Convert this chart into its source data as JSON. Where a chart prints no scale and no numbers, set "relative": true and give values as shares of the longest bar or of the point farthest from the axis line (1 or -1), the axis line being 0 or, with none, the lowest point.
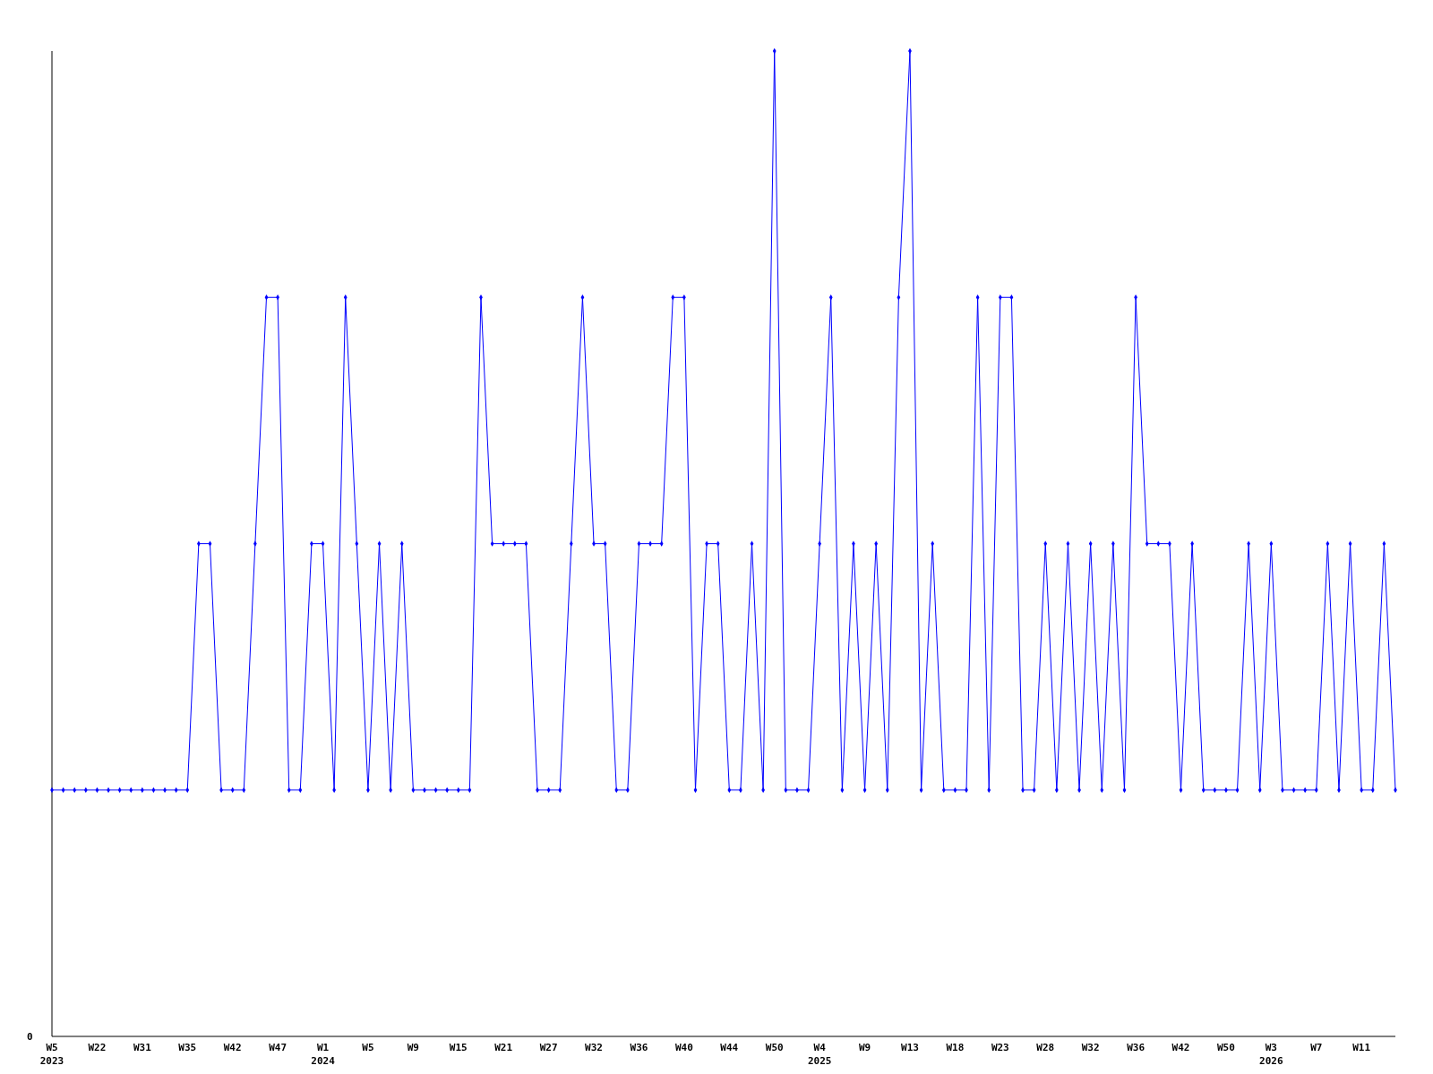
{
  "chart_data": {
    "type": "line",
    "relative": true,
    "color": "#0000ff",
    "marker": "diamond",
    "annotations": [
      "0"
    ],
    "categories": [
      "W5\n2023",
      null,
      null,
      null,
      "W22",
      null,
      null,
      null,
      "W31",
      null,
      null,
      null,
      "W35",
      null,
      null,
      null,
      "W42",
      null,
      null,
      null,
      "W47",
      null,
      null,
      null,
      "W1\n2024",
      null,
      null,
      null,
      "W5",
      null,
      null,
      null,
      "W9",
      null,
      null,
      null,
      "W15",
      null,
      null,
      null,
      "W21",
      null,
      null,
      null,
      "W27",
      null,
      null,
      null,
      "W32",
      null,
      null,
      null,
      "W36",
      null,
      null,
      null,
      "W40",
      null,
      null,
      null,
      "W44",
      null,
      null,
      null,
      "W50",
      null,
      null,
      null,
      "W4\n2025",
      null,
      null,
      null,
      "W9",
      null,
      null,
      null,
      "W13",
      null,
      null,
      null,
      "W18",
      null,
      null,
      null,
      "W23",
      null,
      null,
      null,
      "W28",
      null,
      null,
      null,
      "W32",
      null,
      null,
      null,
      "W36",
      null,
      null,
      null,
      "W42",
      null,
      null,
      null,
      "W50",
      null,
      null,
      null,
      "W3\n2026",
      null,
      null,
      null,
      "W7",
      null,
      null,
      null,
      "W11",
      null,
      null,
      null
    ],
    "values": [
      0.25,
      0.25,
      0.25,
      0.25,
      0.25,
      0.25,
      0.25,
      0.25,
      0.25,
      0.25,
      0.25,
      0.25,
      0.25,
      0.5,
      0.5,
      0.25,
      0.25,
      0.25,
      0.5,
      0.75,
      0.75,
      0.25,
      0.25,
      0.5,
      0.5,
      0.25,
      0.75,
      0.5,
      0.25,
      0.5,
      0.25,
      0.5,
      0.25,
      0.25,
      0.25,
      0.25,
      0.25,
      0.25,
      0.75,
      0.5,
      0.5,
      0.5,
      0.5,
      0.25,
      0.25,
      0.25,
      0.5,
      0.75,
      0.5,
      0.5,
      0.25,
      0.25,
      0.5,
      0.5,
      0.5,
      0.75,
      0.75,
      0.25,
      0.5,
      0.5,
      0.25,
      0.25,
      0.5,
      0.25,
      1,
      0.25,
      0.25,
      0.25,
      0.5,
      0.75,
      0.25,
      0.5,
      0.25,
      0.5,
      0.25,
      0.75,
      1,
      0.25,
      0.5,
      0.25,
      0.25,
      0.25,
      0.75,
      0.25,
      0.75,
      0.75,
      0.25,
      0.25,
      0.5,
      0.25,
      0.5,
      0.25,
      0.5,
      0.25,
      0.5,
      0.25,
      0.75,
      0.5,
      0.5,
      0.5,
      0.25,
      0.5,
      0.25,
      0.25,
      0.25,
      0.25,
      0.5,
      0.25,
      0.5,
      0.25,
      0.25,
      0.25,
      0.25,
      0.5,
      0.25,
      0.5,
      0.25,
      0.25,
      0.5,
      0.25
    ]
  }
}
